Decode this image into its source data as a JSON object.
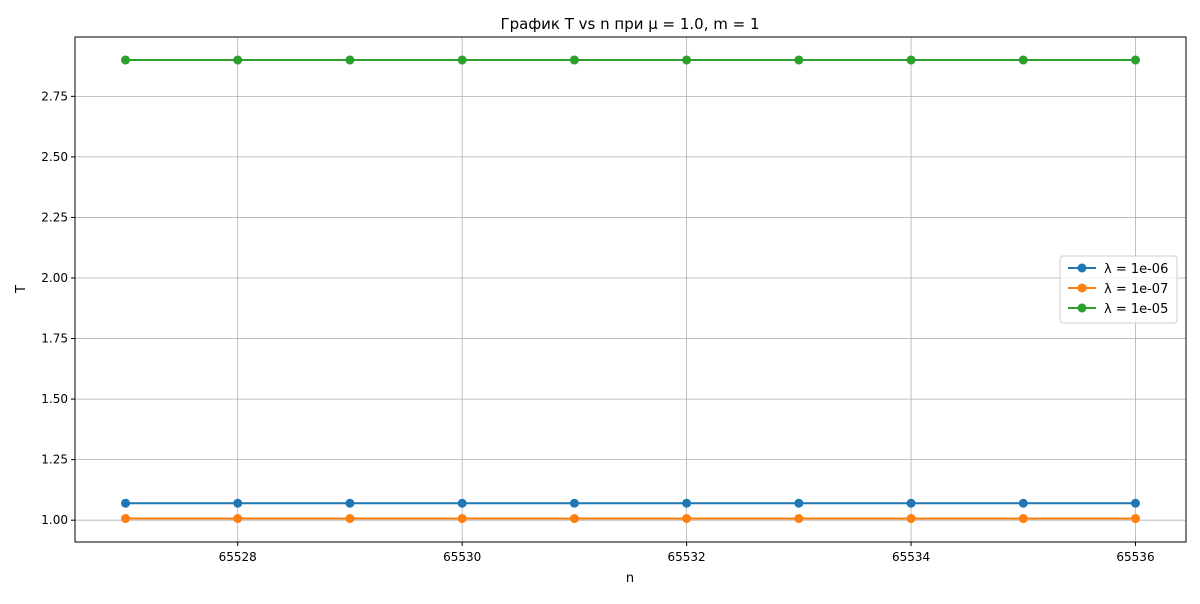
{
  "chart_data": {
    "type": "line",
    "title": "График T vs n при μ = 1.0, m = 1",
    "xlabel": "n",
    "ylabel": "T",
    "x": [
      65527,
      65528,
      65529,
      65530,
      65531,
      65532,
      65533,
      65534,
      65535,
      65536
    ],
    "xlim": [
      65526.55,
      65536.45
    ],
    "ylim": [
      0.91,
      2.995
    ],
    "x_ticks": [
      65528,
      65530,
      65532,
      65534,
      65536
    ],
    "x_tick_labels": [
      "65528",
      "65530",
      "65532",
      "65534",
      "65536"
    ],
    "y_ticks": [
      1.0,
      1.25,
      1.5,
      1.75,
      2.0,
      2.25,
      2.5,
      2.75
    ],
    "y_tick_labels": [
      "1.00",
      "1.25",
      "1.50",
      "1.75",
      "2.00",
      "2.25",
      "2.50",
      "2.75"
    ],
    "grid": true,
    "legend_position": "center-right",
    "markers": "circle",
    "series": [
      {
        "name": "λ = 1e-06",
        "color": "#1f77b4",
        "values": [
          1.07,
          1.07,
          1.07,
          1.07,
          1.07,
          1.07,
          1.07,
          1.07,
          1.07,
          1.07
        ]
      },
      {
        "name": "λ = 1e-07",
        "color": "#ff7f0e",
        "values": [
          1.007,
          1.007,
          1.007,
          1.007,
          1.007,
          1.007,
          1.007,
          1.007,
          1.007,
          1.007
        ]
      },
      {
        "name": "λ = 1e-05",
        "color": "#2ca02c",
        "values": [
          2.9,
          2.9,
          2.9,
          2.9,
          2.9,
          2.9,
          2.9,
          2.9,
          2.9,
          2.9
        ]
      }
    ]
  }
}
